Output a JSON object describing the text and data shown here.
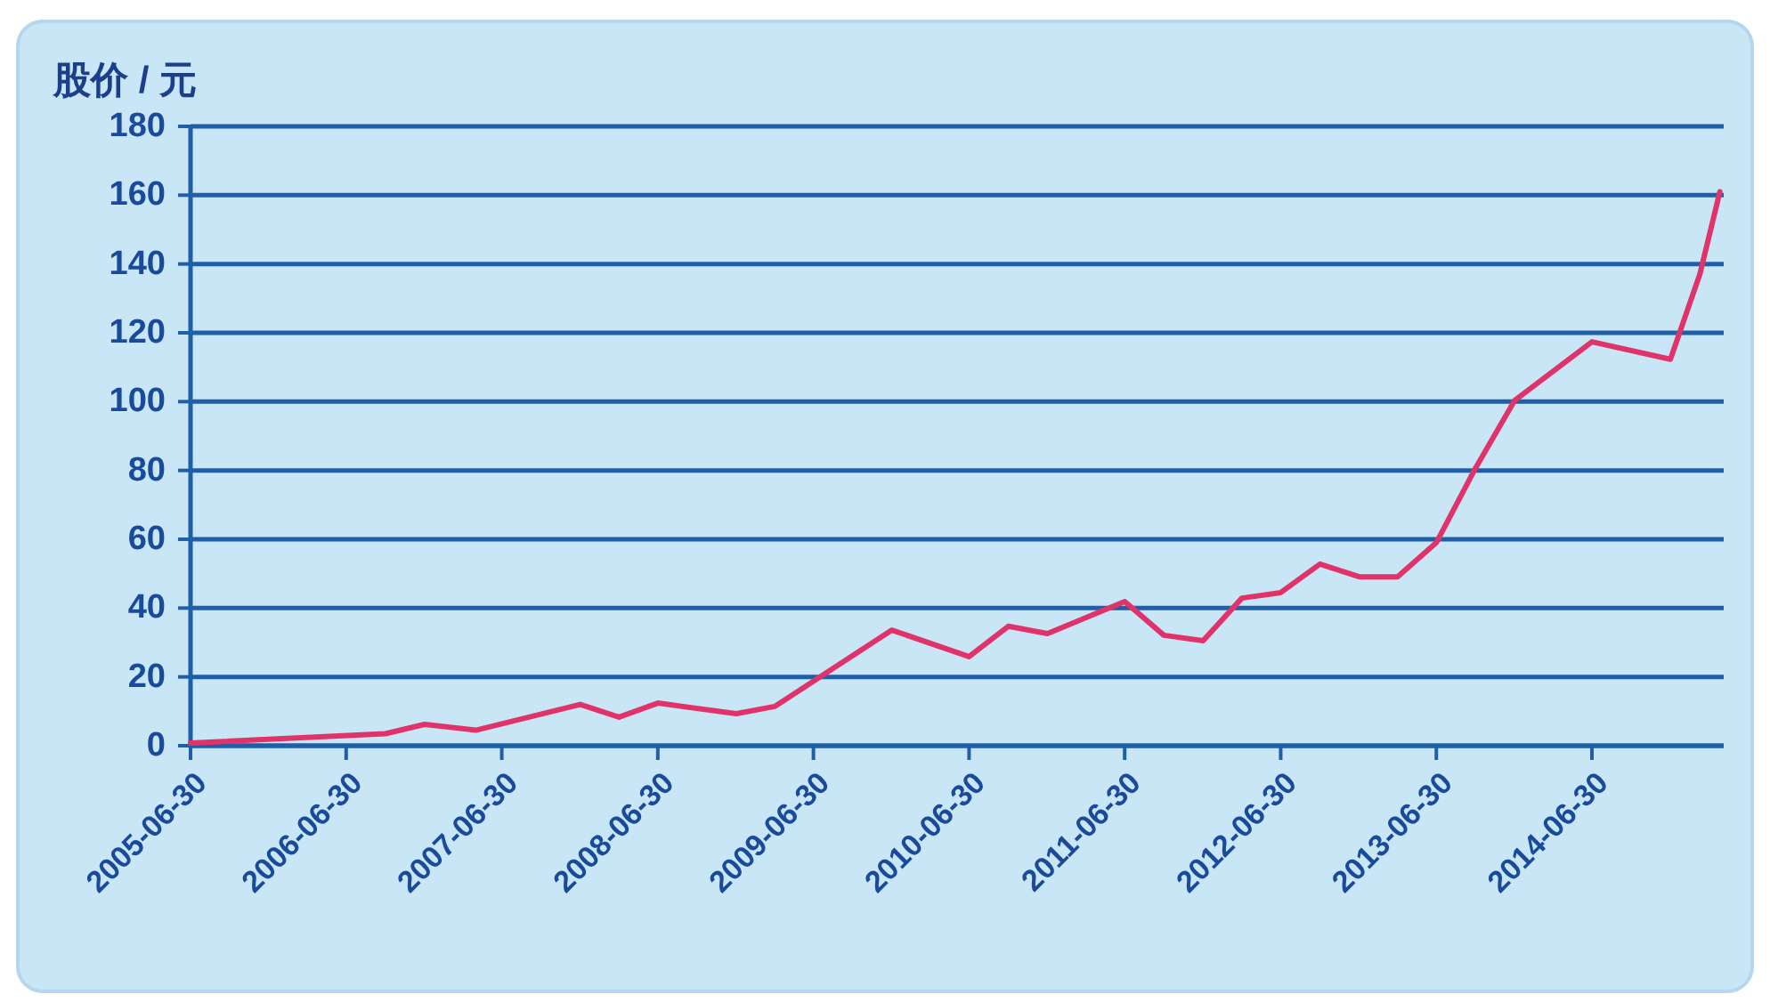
{
  "chart_data": {
    "type": "line",
    "ylabel": "股价 / 元",
    "x": [
      "2005-06-30",
      "2006-09-30",
      "2006-12-31",
      "2007-04-30",
      "2007-12-31",
      "2008-03-31",
      "2008-06-30",
      "2008-12-31",
      "2009-03-31",
      "2009-12-31",
      "2010-06-30",
      "2010-09-30",
      "2010-12-31",
      "2011-06-30",
      "2011-09-30",
      "2011-12-31",
      "2012-03-31",
      "2012-06-30",
      "2012-09-30",
      "2012-12-31",
      "2013-03-31",
      "2013-06-30",
      "2013-09-30",
      "2013-12-31",
      "2014-06-30",
      "2014-12-31",
      "2015-03-10",
      "2015-04-26"
    ],
    "series": [
      {
        "color": "#e0336a",
        "values": [
          0.8,
          3.5,
          6.2,
          4.5,
          12,
          8.3,
          12.4,
          9.3,
          11.4,
          33.6,
          25.9,
          34.7,
          32.6,
          41.9,
          32.1,
          30.5,
          42.9,
          44.5,
          52.8,
          49.1,
          49.1,
          59,
          80.7,
          100.4,
          117.4,
          112.3,
          137,
          161
        ]
      }
    ],
    "xlim": [
      "2005-06-30",
      "2015-05-05"
    ],
    "xticks": [
      "2005-06-30",
      "2006-06-30",
      "2007-06-30",
      "2008-06-30",
      "2009-06-30",
      "2010-06-30",
      "2011-06-30",
      "2012-06-30",
      "2013-06-30",
      "2014-06-30"
    ],
    "ylim": [
      0,
      180
    ],
    "yticks": [
      0,
      20,
      40,
      60,
      80,
      100,
      120,
      140,
      160,
      180
    ],
    "grid": "y",
    "line_style": "solid"
  }
}
